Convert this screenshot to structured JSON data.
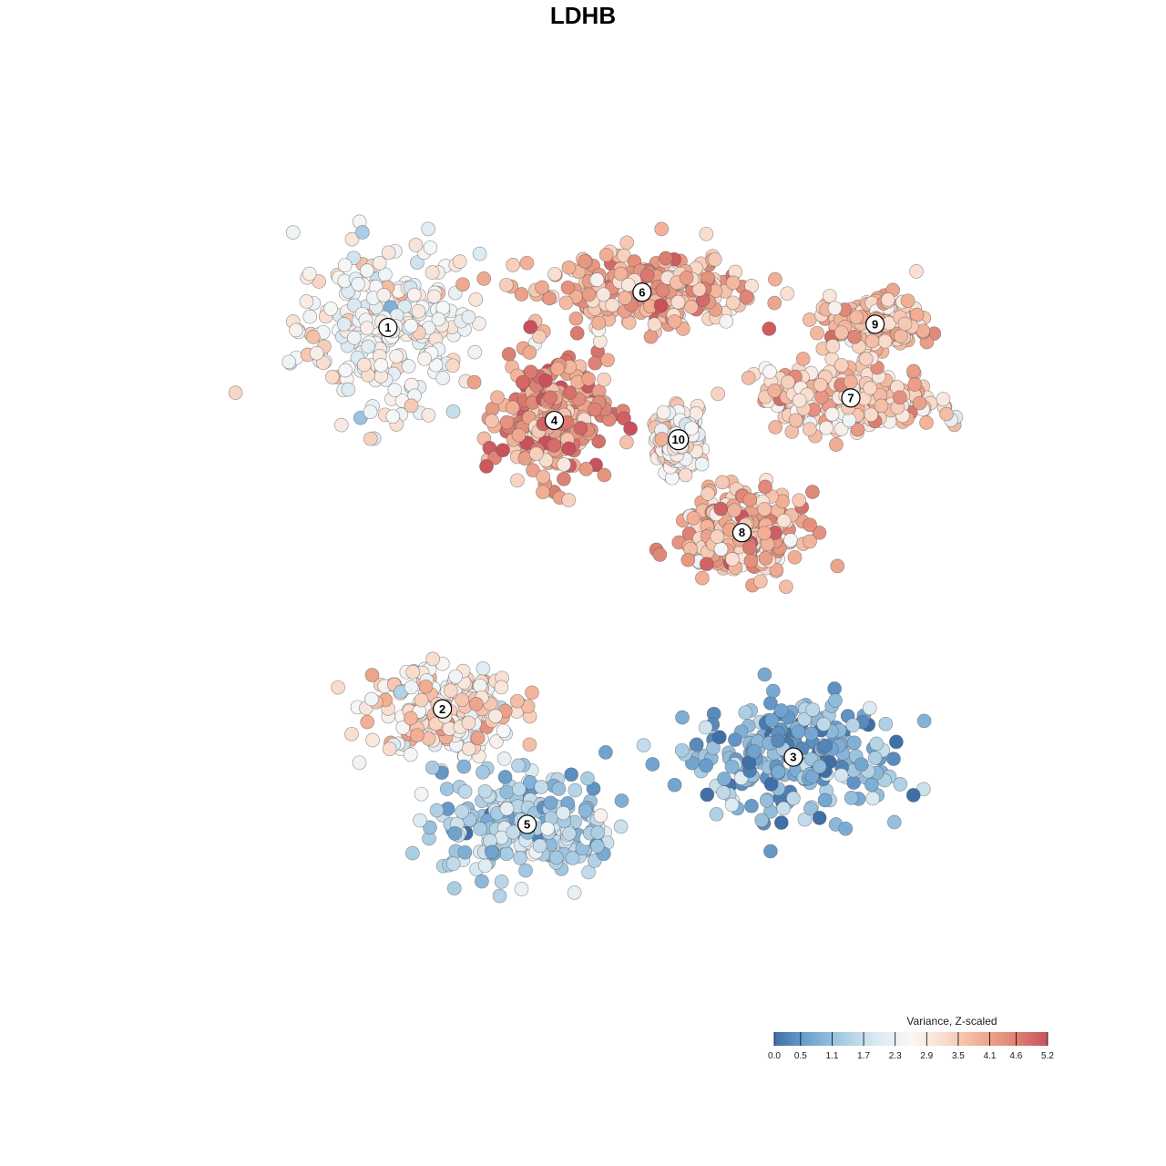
{
  "title": "LDHB",
  "legend": {
    "title": "Variance, Z-scaled",
    "ticks": [
      "0.0",
      "0.5",
      "1.1",
      "1.7",
      "2.3",
      "2.9",
      "3.5",
      "4.1",
      "4.6",
      "5.2"
    ],
    "min": 0.0,
    "max": 5.2,
    "colors": [
      "#3E6FA6",
      "#6FA3D0",
      "#A8CCE3",
      "#DCEAF2",
      "#F7F7F7",
      "#F9DCCC",
      "#F2AF94",
      "#DF8575",
      "#C9515C"
    ]
  },
  "chart_data": {
    "type": "scatter",
    "title": "LDHB",
    "xlabel": "",
    "ylabel": "",
    "grid": false,
    "legend_position": "bottom-right",
    "color_variable": "Variance, Z-scaled",
    "clusters": [
      {
        "label": "1",
        "x": -7.2,
        "y": 7.9,
        "spread_x": 2.7,
        "spread_y": 2.4,
        "value_mean": 2.6,
        "value_sd": 0.5
      },
      {
        "label": "2",
        "x": -5.4,
        "y": -4.0,
        "spread_x": 2.2,
        "spread_y": 1.2,
        "value_mean": 3.0,
        "value_sd": 0.6
      },
      {
        "label": "3",
        "x": 6.2,
        "y": -5.5,
        "spread_x": 3.0,
        "spread_y": 1.7,
        "value_mean": 0.9,
        "value_sd": 0.5
      },
      {
        "label": "4",
        "x": -1.7,
        "y": 5.0,
        "spread_x": 1.6,
        "spread_y": 1.7,
        "value_mean": 4.1,
        "value_sd": 0.6
      },
      {
        "label": "5",
        "x": -2.6,
        "y": -7.6,
        "spread_x": 2.7,
        "spread_y": 1.5,
        "value_mean": 1.4,
        "value_sd": 0.5
      },
      {
        "label": "6",
        "x": 1.2,
        "y": 9.0,
        "spread_x": 3.2,
        "spread_y": 1.0,
        "value_mean": 3.8,
        "value_sd": 0.6
      },
      {
        "label": "7",
        "x": 8.1,
        "y": 5.7,
        "spread_x": 2.6,
        "spread_y": 0.9,
        "value_mean": 3.4,
        "value_sd": 0.6
      },
      {
        "label": "8",
        "x": 4.5,
        "y": 1.5,
        "spread_x": 1.8,
        "spread_y": 1.1,
        "value_mean": 3.8,
        "value_sd": 0.6
      },
      {
        "label": "9",
        "x": 8.9,
        "y": 8.0,
        "spread_x": 1.3,
        "spread_y": 0.7,
        "value_mean": 3.6,
        "value_sd": 0.5
      },
      {
        "label": "10",
        "x": 2.4,
        "y": 4.4,
        "spread_x": 0.6,
        "spread_y": 0.8,
        "value_mean": 2.9,
        "value_sd": 0.5
      }
    ],
    "xlim": [
      -14,
      14
    ],
    "ylim": [
      -13,
      13
    ]
  }
}
